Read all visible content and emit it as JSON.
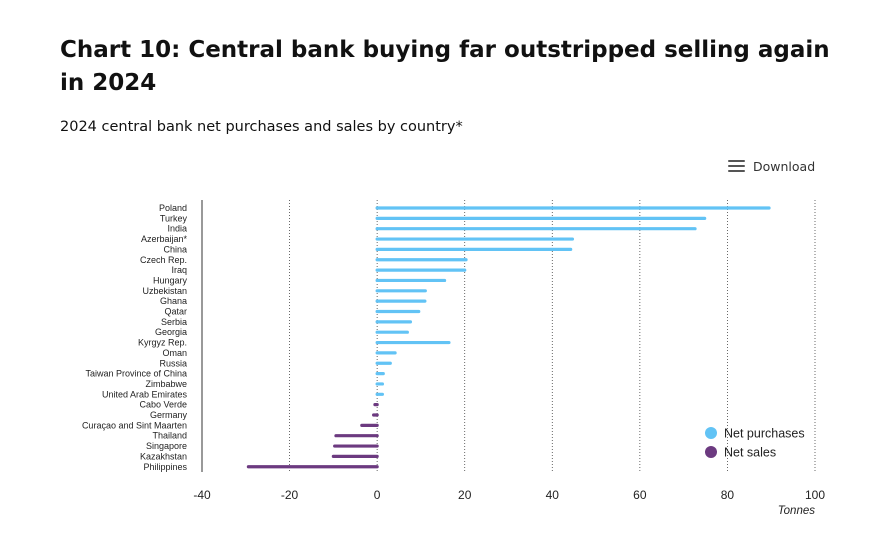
{
  "header": {
    "title": "Chart 10: Central bank buying far outstripped selling again in 2024",
    "subtitle": "2024 central bank net purchases and sales by country*"
  },
  "toolbar": {
    "download_label": "Download",
    "download_icon": "menu-icon"
  },
  "colors": {
    "net_purchases": "#62c3f5",
    "net_sales": "#6c3a80"
  },
  "chart_data": {
    "type": "bar",
    "orientation": "horizontal",
    "xlabel": "Tonnes",
    "xlim": [
      -40,
      100
    ],
    "xticks": [
      -40,
      -20,
      0,
      20,
      40,
      60,
      80,
      100
    ],
    "grid": "vertical dotted",
    "legend_position": "bottom-right",
    "categories": [
      "Poland",
      "Turkey",
      "India",
      "Azerbaijan*",
      "China",
      "Czech Rep.",
      "Iraq",
      "Hungary",
      "Uzbekistan",
      "Ghana",
      "Qatar",
      "Serbia",
      "Georgia",
      "Kyrgyz Rep.",
      "Oman",
      "Russia",
      "Taiwan Province of China",
      "Zimbabwe",
      "United Arab Emirates",
      "Cabo Verde",
      "Germany",
      "Curaçao and Sint Maarten",
      "Thailand",
      "Singapore",
      "Kazakhstan",
      "Philippines"
    ],
    "series": [
      {
        "name": "Net purchases",
        "values": [
          89.5,
          74.8,
          72.6,
          44.6,
          44.2,
          20.3,
          20.0,
          15.4,
          11.0,
          10.9,
          9.5,
          7.6,
          6.9,
          16.4,
          4.1,
          3.0,
          1.4,
          1.2,
          1.2,
          null,
          null,
          null,
          null,
          null,
          null,
          null
        ]
      },
      {
        "name": "Net sales",
        "values": [
          null,
          null,
          null,
          null,
          null,
          null,
          null,
          null,
          null,
          null,
          null,
          null,
          null,
          null,
          null,
          null,
          null,
          null,
          null,
          -0.5,
          -0.8,
          -3.5,
          -9.4,
          -9.7,
          -10.0,
          -29.4
        ]
      }
    ]
  }
}
